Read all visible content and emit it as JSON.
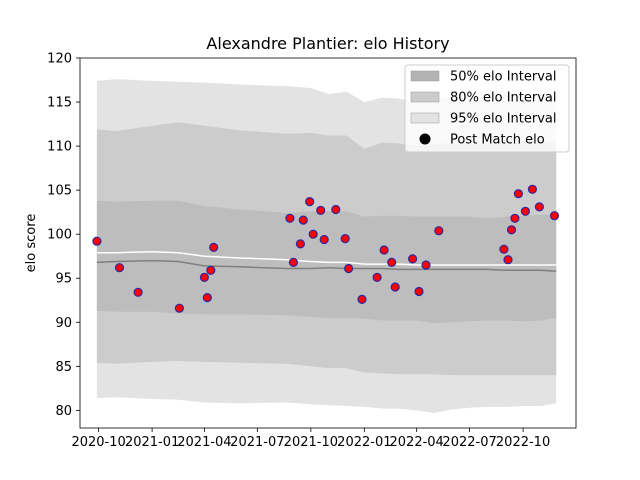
{
  "chart_data": {
    "type": "scatter",
    "title": "Alexandre Plantier: elo History",
    "xlabel": "",
    "ylabel": "elo score",
    "xlim": [
      "2020-08-30",
      "2022-12-31"
    ],
    "ylim": [
      78,
      120
    ],
    "x_tick_labels": [
      "2020-10",
      "2021-01",
      "2021-04",
      "2021-07",
      "2021-10",
      "2022-01",
      "2022-04",
      "2022-07",
      "2022-10"
    ],
    "x_tick_dates": [
      "2020-10-01",
      "2021-01-01",
      "2021-04-01",
      "2021-07-01",
      "2021-10-01",
      "2022-01-01",
      "2022-04-01",
      "2022-07-01",
      "2022-10-01"
    ],
    "y_ticks": [
      80,
      85,
      90,
      95,
      100,
      105,
      110,
      115,
      120
    ],
    "grid": false,
    "legend_position": "top-right",
    "legend": [
      {
        "label": "50% elo Interval",
        "kind": "patch",
        "color": "#b3b3b3"
      },
      {
        "label": "80% elo Interval",
        "kind": "patch",
        "color": "#cccccc"
      },
      {
        "label": "95% elo Interval",
        "kind": "patch",
        "color": "#e3e3e3"
      },
      {
        "label": "Post Match elo",
        "kind": "marker",
        "color": "#000000"
      }
    ],
    "colors": {
      "band95": "#e3e3e3",
      "band80": "#cccccc",
      "band50": "#bdbdbd",
      "median_line": "#7f7f7f",
      "mean_line": "#ffffff",
      "marker_fill": "#ff0000",
      "marker_edge": "#2a2aa0"
    },
    "band_x": [
      "2020-09-28",
      "2020-11-01",
      "2021-01-01",
      "2021-02-15",
      "2021-04-01",
      "2021-06-01",
      "2021-08-20",
      "2021-10-01",
      "2021-11-01",
      "2021-12-01",
      "2022-01-01",
      "2022-02-01",
      "2022-03-01",
      "2022-04-01",
      "2022-05-01",
      "2022-06-01",
      "2022-07-01",
      "2022-08-01",
      "2022-09-01",
      "2022-10-01",
      "2022-11-01",
      "2022-11-27"
    ],
    "band95_upper": [
      117.4,
      117.6,
      117.4,
      117.3,
      117.2,
      117.0,
      116.8,
      116.6,
      115.9,
      116.2,
      115.0,
      115.5,
      115.4,
      115.0,
      115.4,
      115.6,
      115.7,
      115.5,
      115.8,
      115.6,
      115.7,
      115.6
    ],
    "band80_upper": [
      111.9,
      111.7,
      112.3,
      112.7,
      112.3,
      111.8,
      111.4,
      111.5,
      111.2,
      111.2,
      109.7,
      110.4,
      110.3,
      110.0,
      110.2,
      110.4,
      110.5,
      110.3,
      110.7,
      110.4,
      110.5,
      110.4
    ],
    "band50_upper": [
      103.8,
      103.7,
      103.8,
      103.8,
      103.2,
      102.8,
      102.4,
      102.6,
      102.6,
      102.6,
      102.0,
      102.1,
      102.1,
      102.0,
      102.0,
      102.0,
      102.0,
      101.8,
      102.0,
      102.1,
      102.2,
      102.2
    ],
    "median": [
      96.8,
      96.9,
      97.0,
      96.9,
      96.4,
      96.3,
      96.1,
      96.1,
      96.2,
      96.1,
      96.1,
      96.1,
      96.0,
      96.0,
      96.0,
      96.0,
      96.0,
      96.0,
      95.9,
      95.9,
      95.9,
      95.8
    ],
    "mean": [
      97.9,
      97.9,
      98.0,
      97.9,
      97.5,
      97.3,
      97.1,
      96.9,
      96.8,
      96.8,
      96.6,
      96.6,
      96.6,
      96.5,
      96.5,
      96.5,
      96.5,
      96.5,
      96.5,
      96.5,
      96.5,
      96.5
    ],
    "band50_lower": [
      91.3,
      91.2,
      91.2,
      91.0,
      90.9,
      90.9,
      90.8,
      90.6,
      90.5,
      90.5,
      90.4,
      90.2,
      90.2,
      90.2,
      89.9,
      90.0,
      90.1,
      90.2,
      90.2,
      90.1,
      90.2,
      90.5
    ],
    "band80_lower": [
      85.4,
      85.3,
      85.5,
      85.6,
      85.5,
      85.4,
      85.3,
      85.0,
      84.8,
      84.8,
      84.3,
      84.2,
      84.1,
      84.1,
      84.1,
      84.0,
      84.0,
      84.0,
      84.0,
      84.0,
      84.0,
      84.0
    ],
    "band95_lower": [
      81.4,
      81.5,
      81.3,
      81.2,
      80.9,
      80.8,
      80.9,
      80.7,
      80.6,
      80.5,
      80.4,
      80.2,
      80.2,
      80.0,
      79.7,
      80.1,
      80.3,
      80.4,
      80.4,
      80.5,
      80.5,
      80.8
    ],
    "points": [
      {
        "x": "2020-09-28",
        "y": 99.2
      },
      {
        "x": "2020-11-06",
        "y": 96.2
      },
      {
        "x": "2020-12-08",
        "y": 93.4
      },
      {
        "x": "2021-02-17",
        "y": 91.6
      },
      {
        "x": "2021-04-01",
        "y": 95.1
      },
      {
        "x": "2021-04-06",
        "y": 92.8
      },
      {
        "x": "2021-04-12",
        "y": 95.9
      },
      {
        "x": "2021-04-17",
        "y": 98.5
      },
      {
        "x": "2021-08-26",
        "y": 101.8
      },
      {
        "x": "2021-09-01",
        "y": 96.8
      },
      {
        "x": "2021-09-13",
        "y": 98.9
      },
      {
        "x": "2021-09-18",
        "y": 101.6
      },
      {
        "x": "2021-09-29",
        "y": 103.7
      },
      {
        "x": "2021-10-05",
        "y": 100.0
      },
      {
        "x": "2021-10-18",
        "y": 102.7
      },
      {
        "x": "2021-10-24",
        "y": 99.4
      },
      {
        "x": "2021-11-13",
        "y": 102.8
      },
      {
        "x": "2021-11-29",
        "y": 99.5
      },
      {
        "x": "2021-12-05",
        "y": 96.1
      },
      {
        "x": "2021-12-28",
        "y": 92.6
      },
      {
        "x": "2022-01-23",
        "y": 95.1
      },
      {
        "x": "2022-02-04",
        "y": 98.2
      },
      {
        "x": "2022-02-17",
        "y": 96.8
      },
      {
        "x": "2022-02-23",
        "y": 94.0
      },
      {
        "x": "2022-03-25",
        "y": 97.2
      },
      {
        "x": "2022-04-05",
        "y": 93.5
      },
      {
        "x": "2022-04-17",
        "y": 96.5
      },
      {
        "x": "2022-05-09",
        "y": 100.4
      },
      {
        "x": "2022-08-29",
        "y": 98.3
      },
      {
        "x": "2022-09-05",
        "y": 97.1
      },
      {
        "x": "2022-09-11",
        "y": 100.5
      },
      {
        "x": "2022-09-17",
        "y": 101.8
      },
      {
        "x": "2022-09-23",
        "y": 104.6
      },
      {
        "x": "2022-10-05",
        "y": 102.6
      },
      {
        "x": "2022-10-17",
        "y": 105.1
      },
      {
        "x": "2022-10-29",
        "y": 103.1
      },
      {
        "x": "2022-11-24",
        "y": 102.1
      }
    ]
  }
}
